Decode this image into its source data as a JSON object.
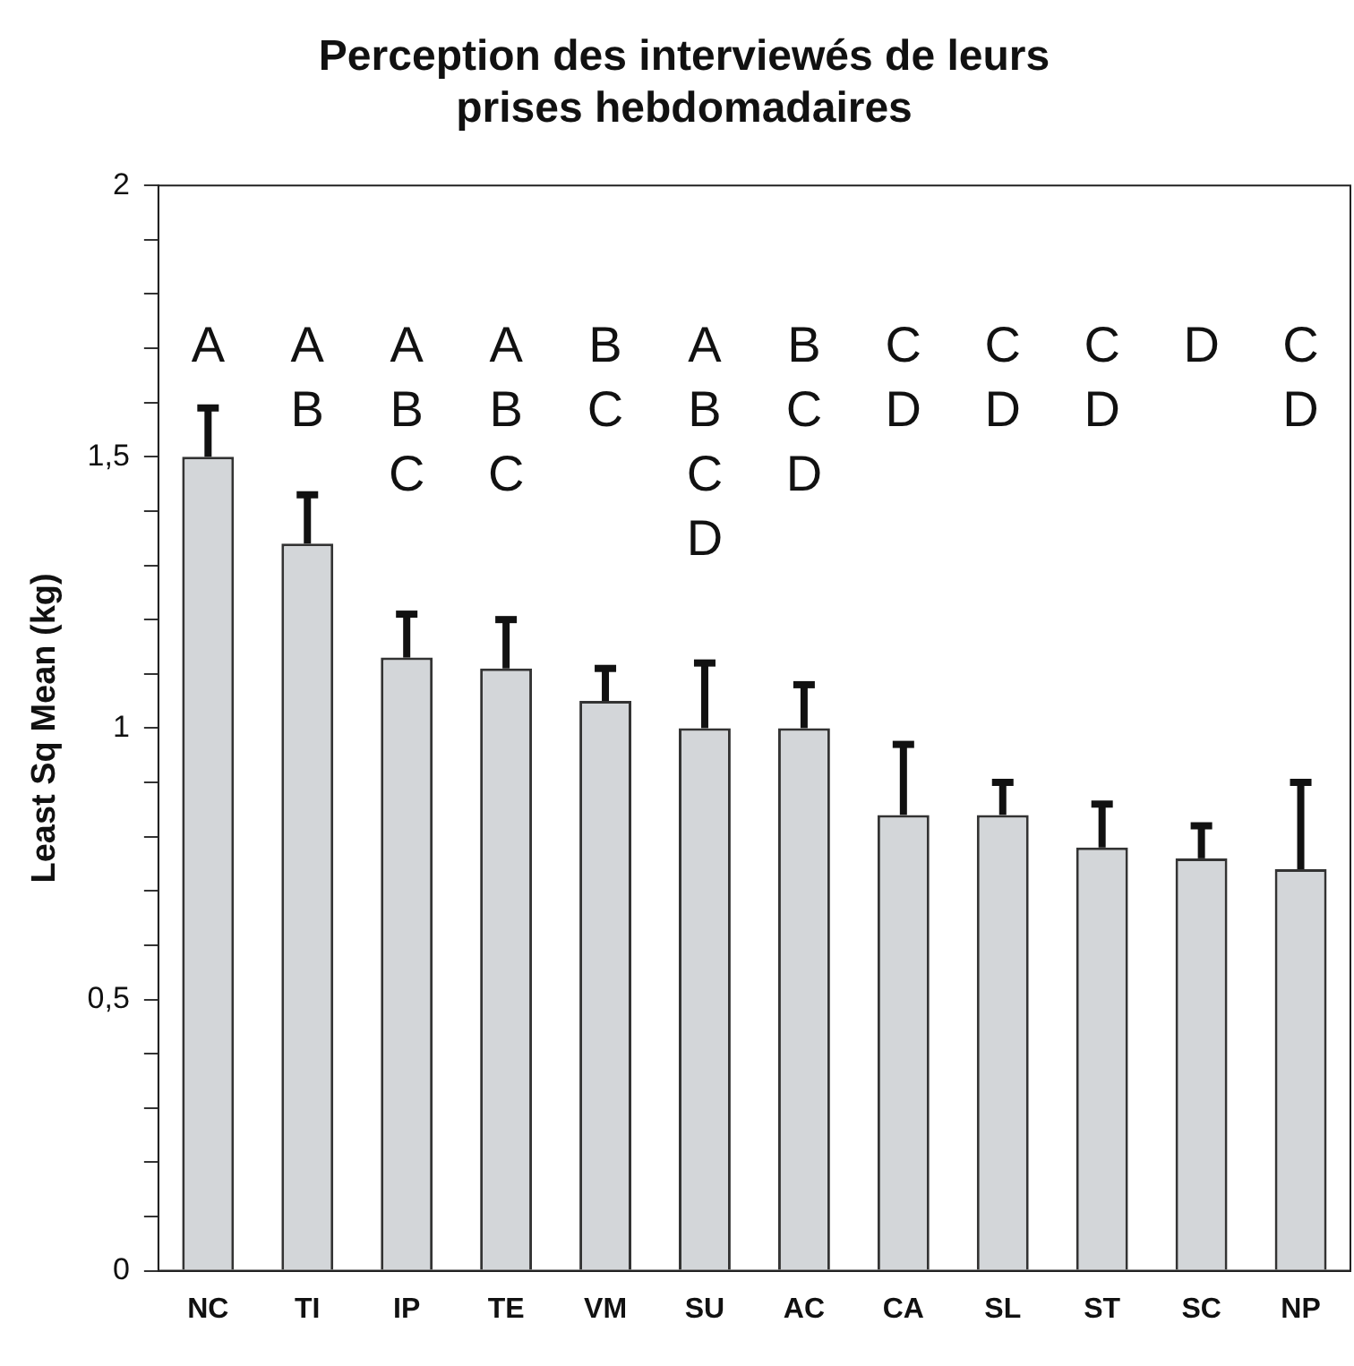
{
  "chart_data": {
    "type": "bar",
    "title": "Perception des interviewés de leurs\nprises hebdomadaires",
    "ylabel": "Least Sq Mean (kg)",
    "categories": [
      "NC",
      "TI",
      "IP",
      "TE",
      "VM",
      "SU",
      "AC",
      "CA",
      "SL",
      "ST",
      "SC",
      "NP"
    ],
    "values": [
      1.5,
      1.34,
      1.13,
      1.11,
      1.05,
      1.0,
      1.0,
      0.84,
      0.84,
      0.78,
      0.76,
      0.74
    ],
    "errors": [
      [
        1.5,
        1.59
      ],
      [
        1.34,
        1.43
      ],
      [
        1.13,
        1.21
      ],
      [
        1.11,
        1.2
      ],
      [
        1.05,
        1.11
      ],
      [
        1.0,
        1.12
      ],
      [
        1.0,
        1.08
      ],
      [
        0.84,
        0.97
      ],
      [
        0.84,
        0.9
      ],
      [
        0.78,
        0.86
      ],
      [
        0.76,
        0.82
      ],
      [
        0.74,
        0.9
      ]
    ],
    "color": "#d3d6d9",
    "ylim": [
      0,
      2
    ],
    "yticks": [
      0,
      {
        "value": 0.1,
        "label": null
      },
      {
        "value": 0.2,
        "label": null
      },
      {
        "value": 0.3,
        "label": null
      },
      {
        "value": 0.4,
        "label": null
      },
      {
        "value": 0.5,
        "label": "0,5"
      },
      {
        "value": 0.6,
        "label": null
      },
      {
        "value": 0.7,
        "label": null
      },
      {
        "value": 0.8,
        "label": null
      },
      {
        "value": 0.9,
        "label": null
      },
      1,
      {
        "value": 1.1,
        "label": null
      },
      {
        "value": 1.2,
        "label": null
      },
      {
        "value": 1.3,
        "label": null
      },
      {
        "value": 1.4,
        "label": null
      },
      {
        "value": 1.5,
        "label": "1,5"
      },
      {
        "value": 1.6,
        "label": null
      },
      {
        "value": 1.7,
        "label": null
      },
      {
        "value": 1.8,
        "label": null
      },
      {
        "value": 1.9,
        "label": null
      },
      2
    ],
    "grid": false,
    "legend": false,
    "annotations": [
      "A",
      "A\nB",
      "A\nB\nC",
      "A\nB\nC",
      "B\nC",
      "A\nB\nC\nD",
      "B\nC\nD",
      "C\nD",
      "C\nD",
      "C\nD",
      "D",
      "C\nD"
    ]
  }
}
